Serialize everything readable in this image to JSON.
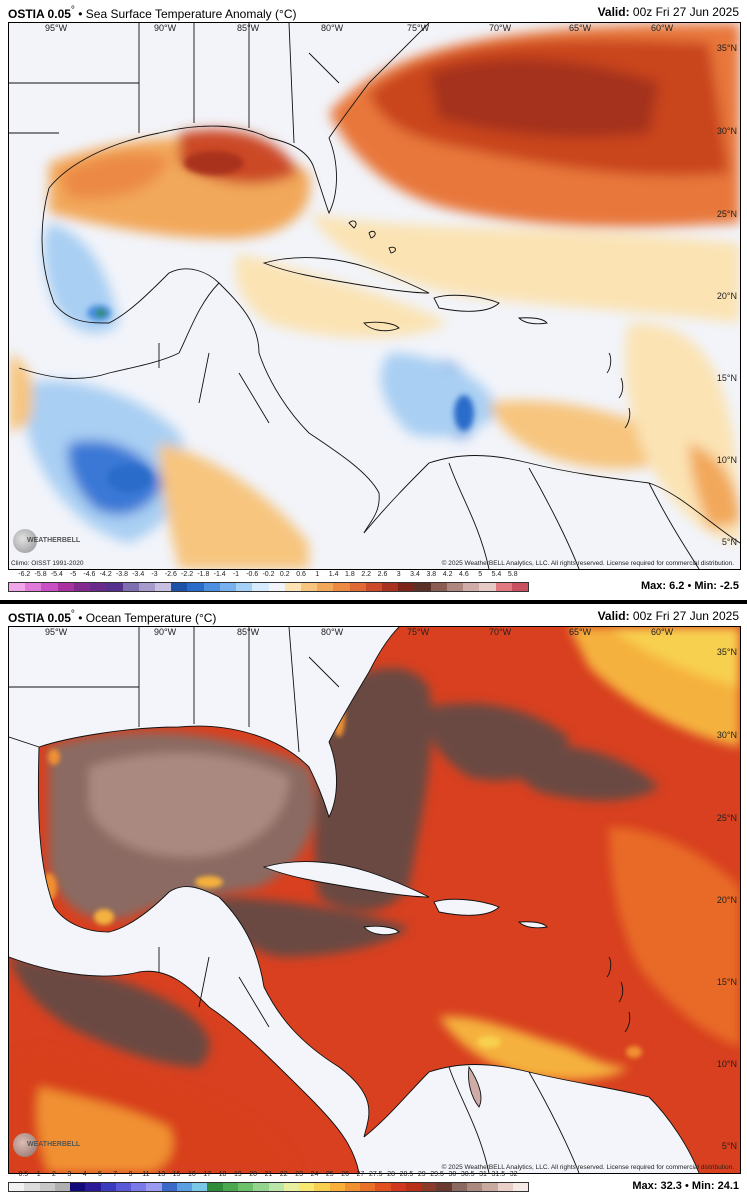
{
  "panel1": {
    "product": "OSTIA 0.05",
    "degree": "°",
    "title": "• Sea Surface Temperature Anomaly (°C)",
    "valid_label": "Valid:",
    "valid_time": "00z Fri 27 Jun 2025",
    "climo": "Climo: OISST 1991-2020",
    "copyright": "© 2025 WeatherBELL Analytics, LLC. All rights reserved. License required for commercial distribution.",
    "max_label": "Max:",
    "max_value": "6.2",
    "min_label": "Min:",
    "min_value": "-2.5",
    "colorbar_ticks": [
      "-6.2",
      "-5.8",
      "-5.4",
      "-5",
      "-4.6",
      "-4.2",
      "-3.8",
      "-3.4",
      "-3",
      "-2.6",
      "-2.2",
      "-1.8",
      "-1.4",
      "-1",
      "-0.6",
      "-0.2",
      "0.2",
      "0.6",
      "1",
      "1.4",
      "1.8",
      "2.2",
      "2.6",
      "3",
      "3.4",
      "3.8",
      "4.2",
      "4.6",
      "5",
      "5.4",
      "5.8"
    ],
    "colorbar_colors": [
      "#f0a6e8",
      "#e07ad8",
      "#c94fc4",
      "#a8339f",
      "#822a8d",
      "#6a2a8c",
      "#55308f",
      "#7f6fb0",
      "#a69bcc",
      "#c8c0e0",
      "#1c53a8",
      "#2a6cc9",
      "#4a8fe0",
      "#76b1ee",
      "#a5d0f5",
      "#d6ebfb",
      "#f2f4fa",
      "#fbe3b4",
      "#f7c57e",
      "#f2a85a",
      "#ec8a44",
      "#e06934",
      "#cc4a27",
      "#a8321e",
      "#7c2418",
      "#5a3028",
      "#8a5e55",
      "#b08680",
      "#d0aca8",
      "#e6cac6",
      "#e07a80",
      "#c85060"
    ],
    "lon_labels": [
      "95°W",
      "90°W",
      "85°W",
      "80°W",
      "75°W",
      "70°W",
      "65°W",
      "60°W"
    ],
    "lat_labels": [
      "35°N",
      "30°N",
      "25°N",
      "20°N",
      "15°N",
      "10°N",
      "5°N"
    ]
  },
  "panel2": {
    "product": "OSTIA 0.05",
    "degree": "°",
    "title": "• Ocean Temperature (°C)",
    "valid_label": "Valid:",
    "valid_time": "00z Fri 27 Jun 2025",
    "copyright": "© 2025 WeatherBELL Analytics, LLC. All rights reserved. License required for commercial distribution.",
    "max_label": "Max:",
    "max_value": "32.3",
    "min_label": "Min:",
    "min_value": "24.1",
    "colorbar_ticks": [
      "0.5",
      "1",
      "2",
      "3",
      "4",
      "5",
      "7",
      "9",
      "11",
      "13",
      "15",
      "16",
      "17",
      "18",
      "19",
      "20",
      "21",
      "22",
      "23",
      "24",
      "25",
      "26",
      "27",
      "27.5",
      "28",
      "28.5",
      "29",
      "29.5",
      "30",
      "30.5",
      "31",
      "31.5",
      "32"
    ],
    "colorbar_colors": [
      "#f2f2f2",
      "#dcdcdc",
      "#c8c8c8",
      "#b0b0b0",
      "#120a78",
      "#2a1a9a",
      "#3b3bc0",
      "#5a5ad8",
      "#7a7ae8",
      "#9a9af0",
      "#3a6ac8",
      "#5aa0e0",
      "#7ac8e8",
      "#2e8b3a",
      "#4aa850",
      "#6cc06a",
      "#94d48e",
      "#bce6a8",
      "#e8f0a0",
      "#f8e870",
      "#f8d050",
      "#f8b038",
      "#f09030",
      "#e87028",
      "#e05020",
      "#d03820",
      "#b83018",
      "#8c3a2a",
      "#6a3a30",
      "#8a6a60",
      "#aa8a80",
      "#c8aaa0",
      "#e8d0c8",
      "#f6eae6"
    ],
    "lon_labels": [
      "95°W",
      "90°W",
      "85°W",
      "80°W",
      "75°W",
      "70°W",
      "65°W",
      "60°W"
    ],
    "lat_labels": [
      "35°N",
      "30°N",
      "25°N",
      "20°N",
      "15°N",
      "10°N",
      "5°N"
    ]
  },
  "logo_text": "WEATHERBELL",
  "colors": {
    "land": "#f4f5fa",
    "anom_neutral": "#f2f4fa",
    "anom_warm": "#e8773a",
    "anom_hot": "#b8321c",
    "anom_cool": "#a9cff3",
    "anom_cold": "#3a78d6",
    "ocean_hot": "#d8401f",
    "ocean_hotter": "#6b4a42",
    "ocean_warm": "#f5b13c",
    "ocean_brown": "#8a6a62"
  }
}
